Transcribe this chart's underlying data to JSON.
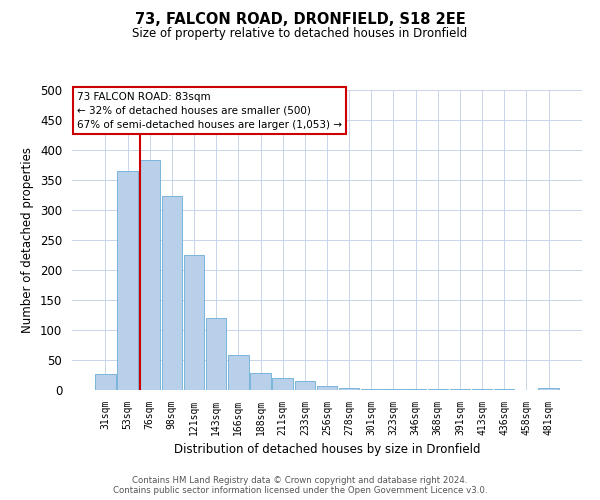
{
  "title": "73, FALCON ROAD, DRONFIELD, S18 2EE",
  "subtitle": "Size of property relative to detached houses in Dronfield",
  "xlabel": "Distribution of detached houses by size in Dronfield",
  "ylabel": "Number of detached properties",
  "bar_labels": [
    "31sqm",
    "53sqm",
    "76sqm",
    "98sqm",
    "121sqm",
    "143sqm",
    "166sqm",
    "188sqm",
    "211sqm",
    "233sqm",
    "256sqm",
    "278sqm",
    "301sqm",
    "323sqm",
    "346sqm",
    "368sqm",
    "391sqm",
    "413sqm",
    "436sqm",
    "458sqm",
    "481sqm"
  ],
  "bar_values": [
    27,
    365,
    383,
    323,
    225,
    120,
    58,
    28,
    20,
    15,
    6,
    3,
    2,
    2,
    2,
    2,
    2,
    2,
    2,
    0,
    4
  ],
  "bar_color": "#b8d0ea",
  "bar_edge_color": "#6aadd5",
  "vline_color": "#cc0000",
  "ylim": [
    0,
    500
  ],
  "yticks": [
    0,
    50,
    100,
    150,
    200,
    250,
    300,
    350,
    400,
    450,
    500
  ],
  "annotation_title": "73 FALCON ROAD: 83sqm",
  "annotation_line1": "← 32% of detached houses are smaller (500)",
  "annotation_line2": "67% of semi-detached houses are larger (1,053) →",
  "annotation_box_color": "#ffffff",
  "annotation_box_edge": "#cc0000",
  "footer_line1": "Contains HM Land Registry data © Crown copyright and database right 2024.",
  "footer_line2": "Contains public sector information licensed under the Open Government Licence v3.0.",
  "bg_color": "#ffffff",
  "grid_color": "#c8d4e8"
}
